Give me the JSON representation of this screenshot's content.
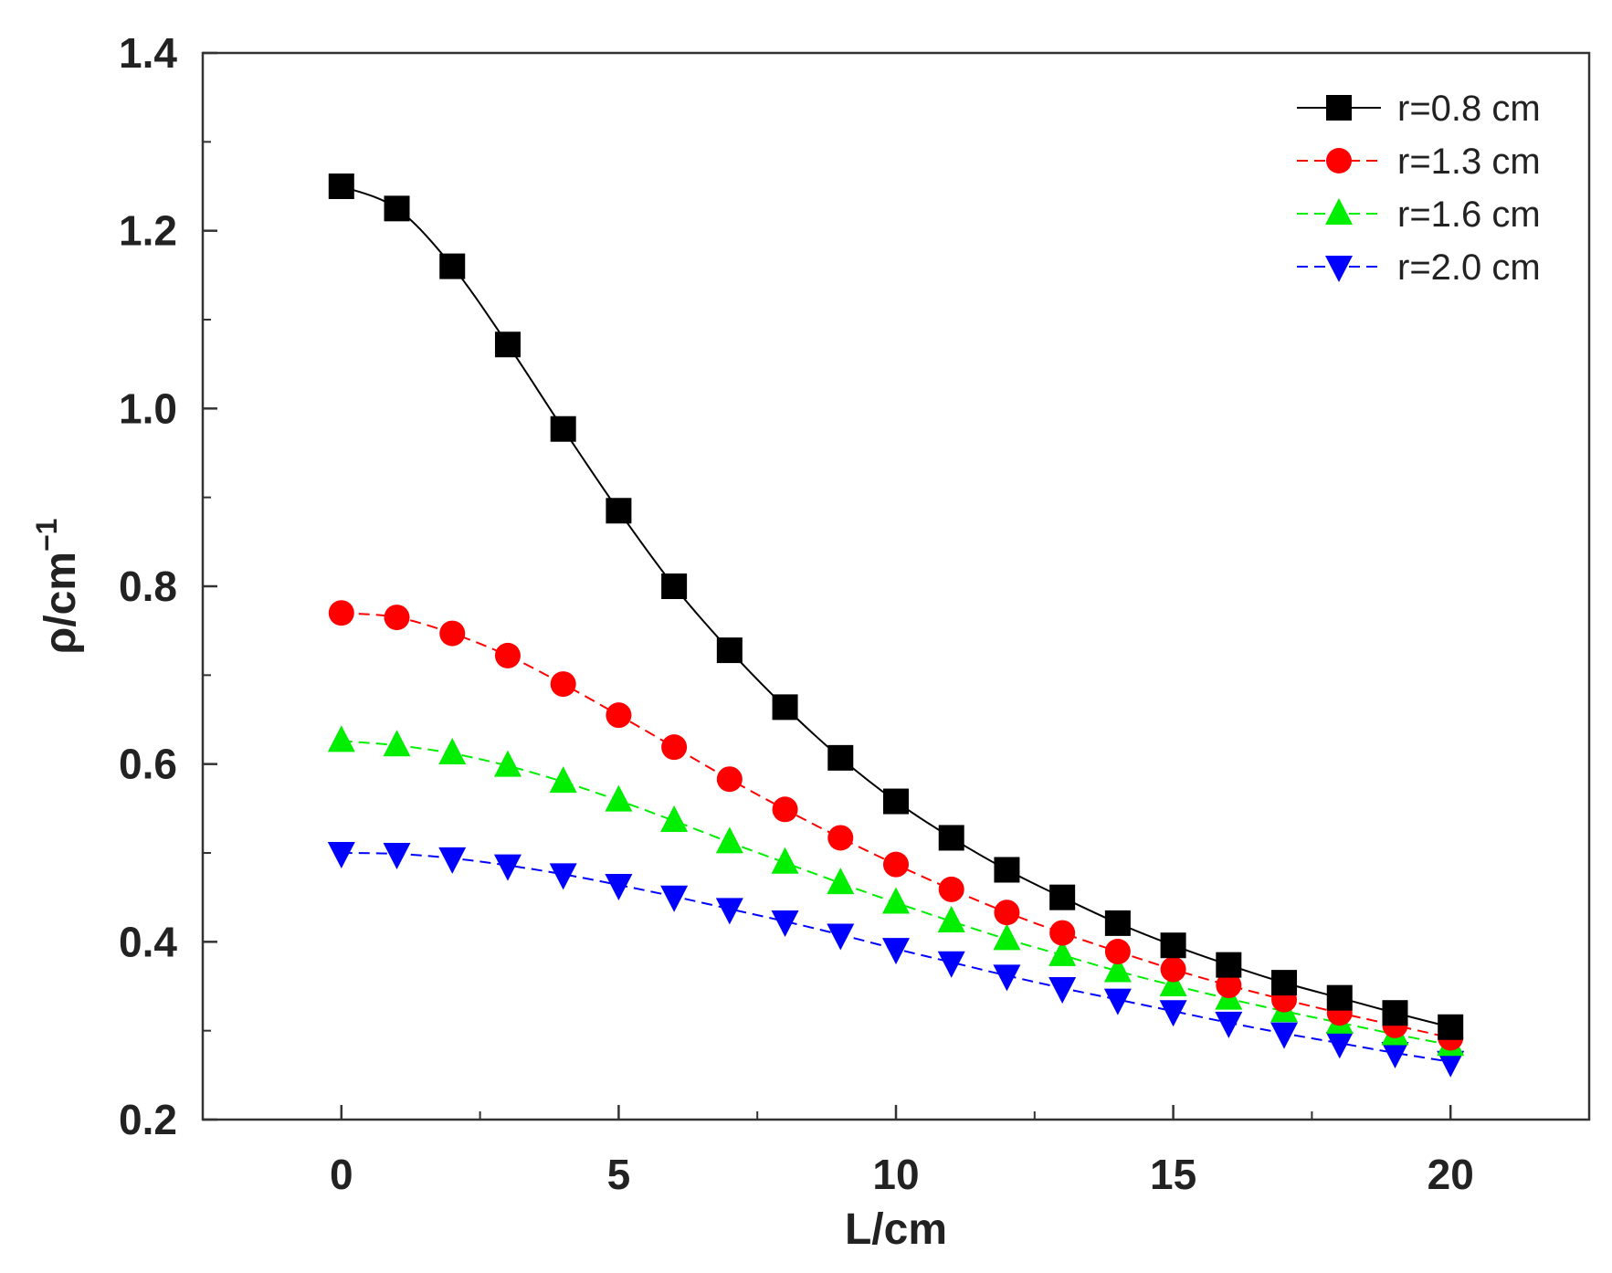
{
  "chart_data": {
    "type": "line",
    "title": "",
    "xlabel": "L/cm",
    "ylabel_base": "ρ/cm",
    "ylabel_sup": "−1",
    "xlim": [
      -2.5,
      22.5
    ],
    "ylim": [
      0.2,
      1.4
    ],
    "xticks": [
      0,
      5,
      10,
      15,
      20
    ],
    "xtick_labels": [
      "0",
      "5",
      "10",
      "15",
      "20"
    ],
    "yticks": [
      0.2,
      0.4,
      0.6,
      0.8,
      1.0,
      1.2,
      1.4
    ],
    "ytick_labels": [
      "0.2",
      "0.4",
      "0.6",
      "0.8",
      "1.0",
      "1.2",
      "1.4"
    ],
    "grid": false,
    "legend_position": "top-right",
    "x": [
      0,
      1,
      2,
      3,
      4,
      5,
      6,
      7,
      8,
      9,
      10,
      11,
      12,
      13,
      14,
      15,
      16,
      17,
      18,
      19,
      20
    ],
    "series": [
      {
        "name": "r=0.8 cm",
        "color": "#000000",
        "marker": "square",
        "dashed": false,
        "values": [
          1.25,
          1.225,
          1.16,
          1.072,
          0.977,
          0.885,
          0.8,
          0.728,
          0.664,
          0.607,
          0.558,
          0.517,
          0.481,
          0.45,
          0.421,
          0.396,
          0.374,
          0.354,
          0.337,
          0.32,
          0.304
        ]
      },
      {
        "name": "r=1.3 cm",
        "color": "#ff0000",
        "marker": "circle",
        "dashed": true,
        "values": [
          0.77,
          0.765,
          0.747,
          0.722,
          0.69,
          0.655,
          0.619,
          0.583,
          0.549,
          0.517,
          0.487,
          0.459,
          0.433,
          0.41,
          0.389,
          0.369,
          0.351,
          0.335,
          0.32,
          0.306,
          0.292
        ]
      },
      {
        "name": "r=1.6 cm",
        "color": "#00ee00",
        "marker": "triangle-up",
        "dashed": true,
        "values": [
          0.626,
          0.621,
          0.612,
          0.598,
          0.58,
          0.559,
          0.536,
          0.512,
          0.489,
          0.466,
          0.444,
          0.423,
          0.403,
          0.385,
          0.367,
          0.351,
          0.336,
          0.322,
          0.309,
          0.296,
          0.284
        ]
      },
      {
        "name": "r=2.0 cm",
        "color": "#0000ff",
        "marker": "triangle-down",
        "dashed": true,
        "values": [
          0.5,
          0.499,
          0.494,
          0.486,
          0.476,
          0.464,
          0.451,
          0.437,
          0.423,
          0.408,
          0.392,
          0.377,
          0.362,
          0.348,
          0.335,
          0.322,
          0.309,
          0.297,
          0.286,
          0.275,
          0.265
        ]
      }
    ]
  }
}
